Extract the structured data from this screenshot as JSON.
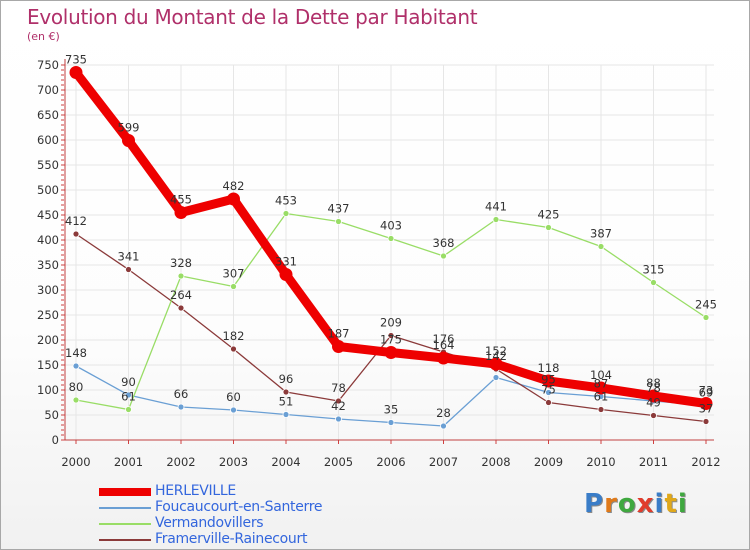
{
  "header": {
    "title": "Evolution du Montant de la Dette par Habitant",
    "subtitle": "(en €)"
  },
  "logo": {
    "text": "Proxiti",
    "letter_colors": [
      "#3a7dc8",
      "#e07a1a",
      "#3fa83f",
      "#e03c2c",
      "#3a7dc8",
      "#e0a81a",
      "#3fa83f"
    ]
  },
  "chart_data": {
    "type": "line",
    "title": "Evolution du Montant de la Dette par Habitant",
    "subtitle": "(en €)",
    "xlabel": "",
    "ylabel": "",
    "x": [
      "2000",
      "2001",
      "2002",
      "2003",
      "2004",
      "2005",
      "2006",
      "2007",
      "2008",
      "2009",
      "2010",
      "2011",
      "2012"
    ],
    "ylim": [
      0,
      750
    ],
    "yticks": [
      0,
      50,
      100,
      150,
      200,
      250,
      300,
      350,
      400,
      450,
      500,
      550,
      600,
      650,
      700,
      750
    ],
    "grid": true,
    "legend_position": "bottom-left",
    "series": [
      {
        "name": "HERLEVILLE",
        "color": "#ee0000",
        "values": [
          735,
          599,
          455,
          482,
          331,
          187,
          175,
          164,
          152,
          118,
          104,
          88,
          73
        ],
        "labels": [
          "735",
          "599",
          "455",
          "482",
          "331",
          "187",
          "175",
          "164",
          "152",
          "118",
          "104",
          "88",
          "73"
        ]
      },
      {
        "name": "Foucaucourt-en-Santerre",
        "color": "#6a9fd4",
        "values": [
          148,
          90,
          66,
          60,
          51,
          42,
          35,
          28,
          125,
          95,
          87,
          78,
          69
        ],
        "labels": [
          "148",
          "90",
          "66",
          "60",
          "51",
          "42",
          "35",
          "28",
          "",
          "95",
          "87",
          "78",
          "69"
        ]
      },
      {
        "name": "Vermandovillers",
        "color": "#99dd66",
        "values": [
          80,
          61,
          328,
          307,
          453,
          437,
          403,
          368,
          441,
          425,
          387,
          315,
          245
        ],
        "labels": [
          "80",
          "61",
          "328",
          "307",
          "453",
          "437",
          "403",
          "368",
          "441",
          "425",
          "387",
          "315",
          "245"
        ]
      },
      {
        "name": "Framerville-Rainecourt",
        "color": "#8b3a3a",
        "values": [
          412,
          341,
          264,
          182,
          96,
          78,
          209,
          176,
          142,
          75,
          61,
          49,
          37
        ],
        "labels": [
          "412",
          "341",
          "264",
          "182",
          "96",
          "78",
          "209",
          "176",
          "142",
          "75",
          "61",
          "49",
          "37"
        ]
      }
    ]
  }
}
